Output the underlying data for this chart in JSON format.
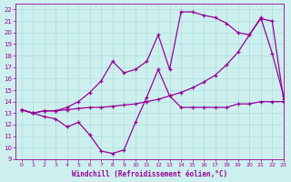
{
  "xlabel": "Windchill (Refroidissement éolien,°C)",
  "xlim": [
    -0.5,
    23
  ],
  "ylim": [
    9,
    22.5
  ],
  "yticks": [
    9,
    10,
    11,
    12,
    13,
    14,
    15,
    16,
    17,
    18,
    19,
    20,
    21,
    22
  ],
  "xticks": [
    0,
    1,
    2,
    3,
    4,
    5,
    6,
    7,
    8,
    9,
    10,
    11,
    12,
    13,
    14,
    15,
    16,
    17,
    18,
    19,
    20,
    21,
    22,
    23
  ],
  "bg_color": "#cdf0ee",
  "grid_color": "#aadddd",
  "line_color": "#990099",
  "line1_x": [
    0,
    1,
    2,
    3,
    4,
    5,
    6,
    7,
    8,
    9,
    10,
    11,
    12,
    13,
    14,
    15,
    16,
    17,
    18,
    19,
    20,
    21,
    22,
    23
  ],
  "line1_y": [
    13.3,
    13.0,
    12.7,
    12.5,
    11.8,
    12.2,
    11.1,
    9.7,
    9.5,
    9.8,
    12.2,
    14.4,
    16.8,
    14.5,
    13.5,
    13.5,
    13.5,
    13.5,
    13.5,
    13.8,
    13.8,
    14.0,
    14.0,
    14.0
  ],
  "line2_x": [
    0,
    1,
    2,
    3,
    4,
    5,
    6,
    7,
    8,
    9,
    10,
    11,
    12,
    13,
    14,
    15,
    16,
    17,
    18,
    19,
    20,
    21,
    22,
    23
  ],
  "line2_y": [
    13.3,
    13.0,
    13.2,
    13.2,
    13.3,
    13.4,
    13.5,
    13.5,
    13.6,
    13.7,
    13.8,
    14.0,
    14.2,
    14.5,
    14.8,
    15.2,
    15.7,
    16.3,
    17.2,
    18.3,
    19.8,
    21.2,
    21.0,
    14.2
  ],
  "line3_x": [
    0,
    1,
    2,
    3,
    4,
    5,
    6,
    7,
    8,
    9,
    10,
    11,
    12,
    13,
    14,
    15,
    16,
    17,
    18,
    19,
    20,
    21,
    22,
    23
  ],
  "line3_y": [
    13.3,
    13.0,
    13.2,
    13.2,
    13.5,
    14.0,
    14.8,
    15.8,
    17.5,
    16.5,
    16.8,
    17.5,
    19.8,
    16.8,
    21.8,
    21.8,
    21.5,
    21.3,
    20.8,
    20.0,
    19.8,
    21.3,
    18.2,
    14.5
  ]
}
